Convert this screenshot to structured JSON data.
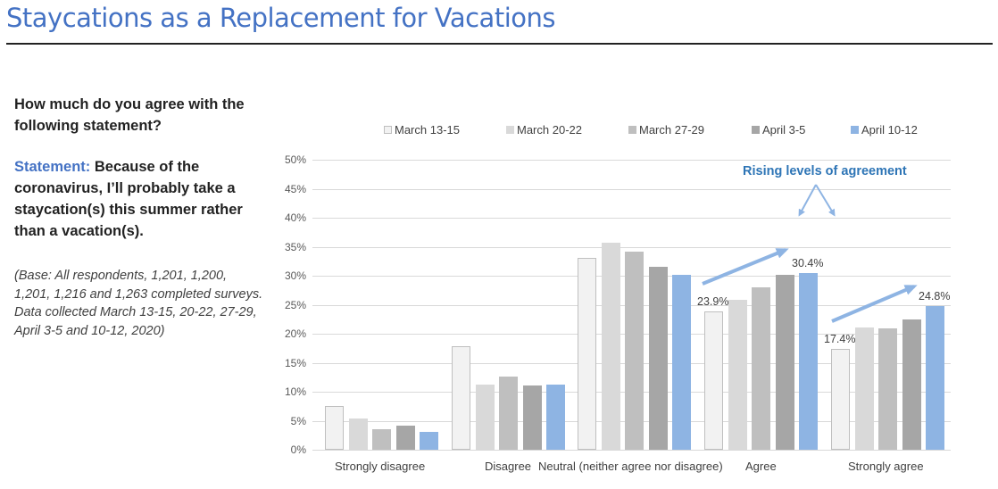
{
  "page": {
    "title": "Staycations as a Replacement for Vacations"
  },
  "left_panel": {
    "question": "How much do you agree with the following statement?",
    "statement_label": "Statement:",
    "statement_text": " Because of the coronavirus, I’ll probably take a staycation(s) this summer rather than a vacation(s).",
    "base_note": "(Base: All respondents, 1,201, 1,200, 1,201, 1,216 and 1,263 completed surveys. Data collected March 13-15, 20-22, 27-29, April  3-5 and 10-12, 2020)"
  },
  "chart_data": {
    "type": "bar",
    "title": "",
    "xlabel": "",
    "ylabel": "",
    "ylim": [
      0,
      50
    ],
    "yticks": [
      "0%",
      "5%",
      "10%",
      "15%",
      "20%",
      "25%",
      "30%",
      "35%",
      "40%",
      "45%",
      "50%"
    ],
    "grid": true,
    "legend_position": "top",
    "categories": [
      "Strongly disagree",
      "Disagree",
      "Neutral (neither agree nor disagree)",
      "Agree",
      "Strongly agree"
    ],
    "series": [
      {
        "name": "March 13-15",
        "color": "#f2f2f2",
        "values": [
          7.5,
          17.8,
          33.1,
          23.9,
          17.4
        ]
      },
      {
        "name": "March 20-22",
        "color": "#d9d9d9",
        "values": [
          5.4,
          11.2,
          35.7,
          25.8,
          21.1
        ]
      },
      {
        "name": "March 27-29",
        "color": "#bfbfbf",
        "values": [
          3.5,
          12.6,
          34.2,
          28.0,
          20.9
        ]
      },
      {
        "name": "April 3-5",
        "color": "#a6a6a6",
        "values": [
          4.2,
          11.1,
          31.5,
          30.2,
          22.5
        ]
      },
      {
        "name": "April 10-12",
        "color": "#8eb4e3",
        "values": [
          3.1,
          11.2,
          30.2,
          30.4,
          24.8
        ]
      }
    ],
    "data_labels": [
      {
        "category": "Agree",
        "series": "March 13-15",
        "text": "23.9%"
      },
      {
        "category": "Agree",
        "series": "April 10-12",
        "text": "30.4%"
      },
      {
        "category": "Strongly agree",
        "series": "March 13-15",
        "text": "17.4%"
      },
      {
        "category": "Strongly agree",
        "series": "April 10-12",
        "text": "24.8%"
      }
    ],
    "annotations": [
      {
        "text": "Rising levels of agreement",
        "color": "#2e75b6"
      }
    ]
  }
}
